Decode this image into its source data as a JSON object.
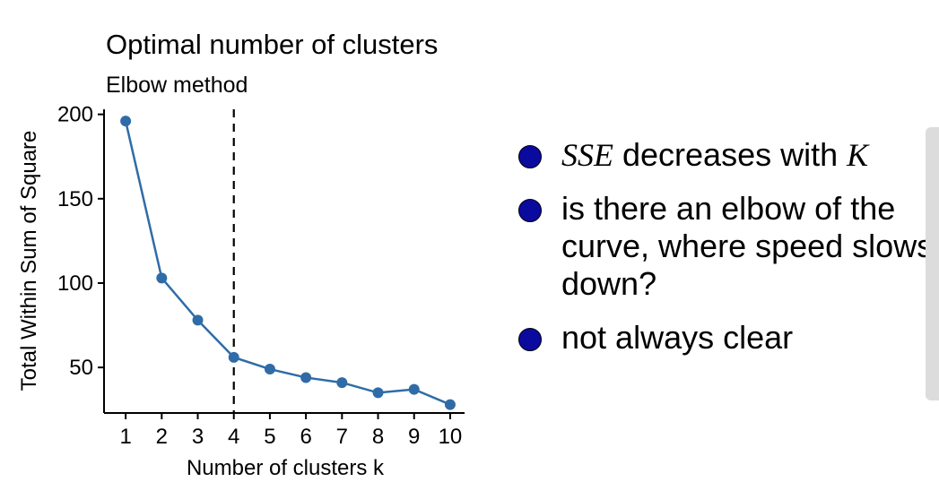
{
  "chart_data": {
    "type": "line",
    "title": "Optimal number of clusters",
    "subtitle": "Elbow method",
    "xlabel": "Number of clusters k",
    "ylabel": "Total Within Sum of Square",
    "x": [
      1,
      2,
      3,
      4,
      5,
      6,
      7,
      8,
      9,
      10
    ],
    "y": [
      196,
      103,
      78,
      56,
      49,
      44,
      41,
      35,
      37,
      28
    ],
    "xlim": [
      0.4,
      10.4
    ],
    "ylim": [
      23,
      203
    ],
    "yticks": [
      50,
      100,
      150,
      200
    ],
    "xticks": [
      1,
      2,
      3,
      4,
      5,
      6,
      7,
      8,
      9,
      10
    ],
    "vline_x": 4,
    "grid": false,
    "line_color": "#2f6ca7",
    "point_color": "#2f6ca7"
  },
  "bullets": [
    {
      "math1": "SSE",
      "text": " decreases with ",
      "math2": "K"
    },
    {
      "text": "is there an elbow of the curve, where speed slows down?"
    },
    {
      "text": "not always clear"
    }
  ],
  "colors": {
    "bullet": "#0a0a9e"
  }
}
